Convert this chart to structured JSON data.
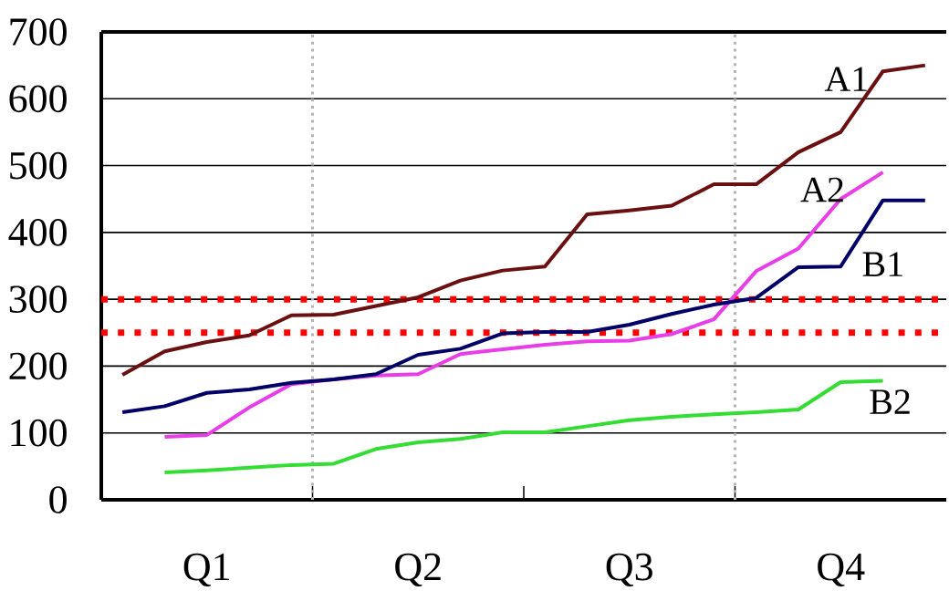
{
  "chart_data": {
    "type": "line",
    "categories": [
      null,
      null,
      "Q1",
      null,
      null,
      null,
      null,
      "Q2",
      null,
      null,
      null,
      null,
      "Q3",
      null,
      null,
      null,
      null,
      "Q4",
      null,
      null
    ],
    "ylim": [
      0,
      700
    ],
    "yticks": [
      0,
      100,
      200,
      300,
      400,
      500,
      600,
      700
    ],
    "grid": "y",
    "series": [
      {
        "name": "A1",
        "color": "#6b1010",
        "values": [
          187,
          222,
          236,
          246,
          276,
          277,
          290,
          303,
          328,
          343,
          349,
          427,
          433,
          440,
          472,
          472,
          520,
          550,
          641,
          650
        ]
      },
      {
        "name": "A2",
        "color": "#e83ee8",
        "values": [
          null,
          94,
          97,
          138,
          173,
          180,
          186,
          188,
          218,
          225,
          232,
          237,
          238,
          248,
          270,
          342,
          376,
          450,
          490,
          null
        ]
      },
      {
        "name": "B1",
        "color": "#000066",
        "values": [
          131,
          140,
          160,
          165,
          175,
          180,
          188,
          217,
          226,
          249,
          251,
          251,
          262,
          278,
          292,
          302,
          348,
          349,
          448,
          448
        ]
      },
      {
        "name": "B2",
        "color": "#33dd33",
        "values": [
          null,
          41,
          44,
          48,
          52,
          54,
          76,
          86,
          91,
          101,
          101,
          110,
          119,
          124,
          128,
          131,
          135,
          176,
          178,
          null
        ]
      }
    ],
    "ref_lines": [
      {
        "axis": "y",
        "value": 300,
        "color": "#ff0000",
        "line_style": "dotted"
      },
      {
        "axis": "y",
        "value": 250,
        "color": "#ff0000",
        "line_style": "dotted"
      }
    ]
  }
}
